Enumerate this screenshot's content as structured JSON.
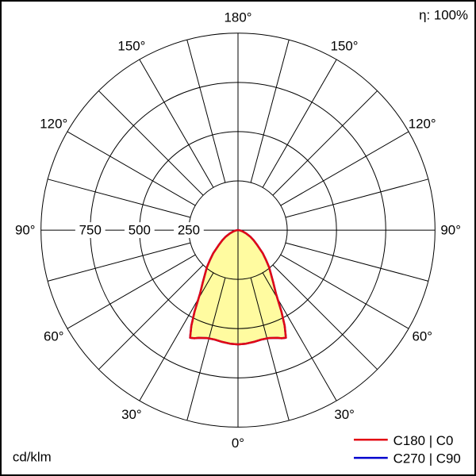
{
  "meta": {
    "efficiency": "η: 100%",
    "unit": "cd/klm"
  },
  "legend": [
    {
      "label": "C180 | C0",
      "color": "#e30613"
    },
    {
      "label": "C270 | C90",
      "color": "#0000cd"
    }
  ],
  "chart_data": {
    "type": "polar-photometric",
    "unit": "cd/klm",
    "r_max": 1000,
    "grid_step_deg": 15,
    "legend_position": "bottom-right",
    "radial_ticks": [
      {
        "value": 250,
        "label": "250"
      },
      {
        "value": 500,
        "label": "500"
      },
      {
        "value": 750,
        "label": "750"
      }
    ],
    "angle_ticks": [
      {
        "deg": 0,
        "label": "0°"
      },
      {
        "deg": 30,
        "label": "30°"
      },
      {
        "deg": 60,
        "label": "60°"
      },
      {
        "deg": 90,
        "label": "90°"
      },
      {
        "deg": 120,
        "label": "120°"
      },
      {
        "deg": 150,
        "label": "150°"
      },
      {
        "deg": 180,
        "label": "180°"
      }
    ],
    "series": [
      {
        "name": "C180 | C0",
        "color": "#e30613",
        "fill": "#fffba0",
        "gamma_deg": [
          0,
          4,
          8,
          12,
          16,
          20,
          22,
          24,
          26,
          28,
          31,
          34,
          37,
          40,
          43,
          47,
          52,
          57,
          62,
          68,
          74,
          80,
          85,
          90
        ],
        "values_cd_klm": [
          580,
          578,
          573,
          568,
          570,
          582,
          592,
          598,
          540,
          470,
          373,
          320,
          277,
          245,
          210,
          172,
          125,
          95,
          70,
          43,
          25,
          12,
          5,
          0
        ]
      },
      {
        "name": "C270 | C90",
        "color": "#0000cd",
        "fill": "none",
        "gamma_deg": [
          0,
          4,
          8,
          12,
          16,
          20,
          22,
          24,
          26,
          28,
          31,
          34,
          37,
          40,
          43,
          47,
          52,
          57,
          62,
          68,
          74,
          80,
          85,
          90
        ],
        "values_cd_klm": [
          580,
          578,
          573,
          568,
          570,
          582,
          592,
          598,
          540,
          470,
          373,
          320,
          277,
          245,
          210,
          172,
          125,
          95,
          70,
          43,
          25,
          12,
          5,
          0
        ]
      }
    ]
  }
}
